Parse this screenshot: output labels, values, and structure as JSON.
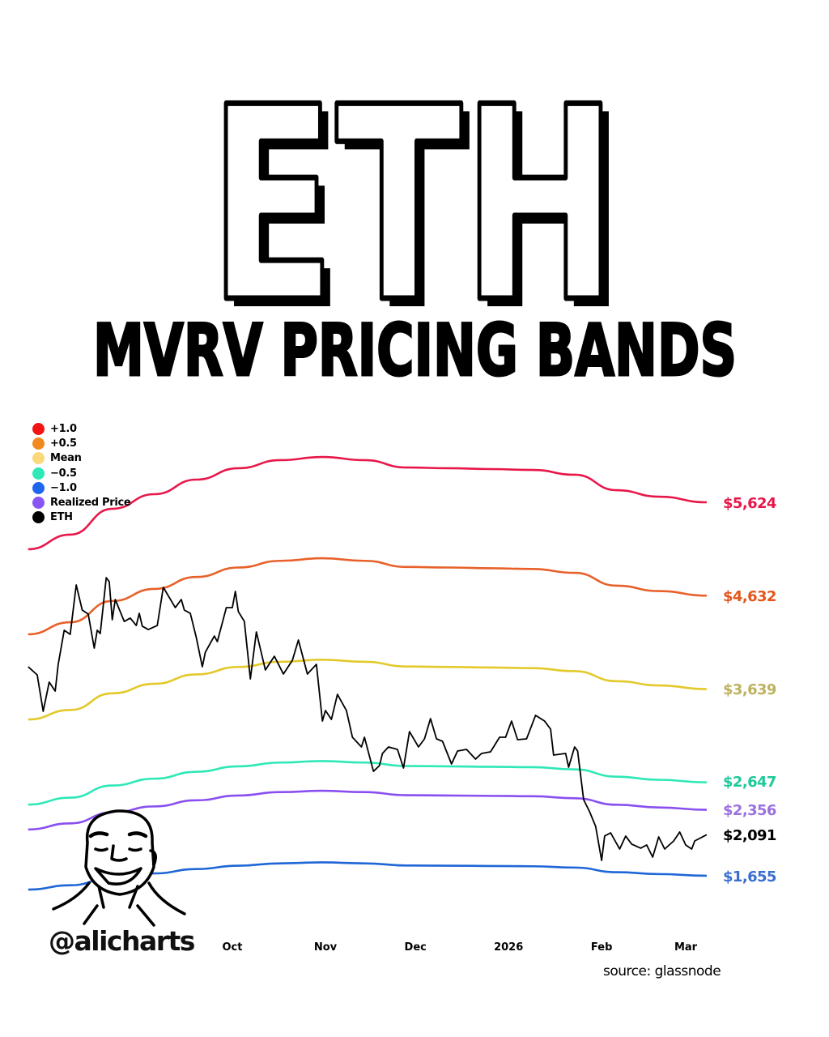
{
  "header": {
    "title": "ETH",
    "subtitle": "MVRV PRICING BANDS"
  },
  "branding": {
    "handle": "@alicharts",
    "source": "source: glassnode"
  },
  "chart_data": {
    "type": "line",
    "title": "",
    "xlabel": "",
    "ylabel": "",
    "x_ticks": [
      {
        "date": "2025-10-01",
        "label": "Oct"
      },
      {
        "date": "2025-11-01",
        "label": "Nov"
      },
      {
        "date": "2025-12-01",
        "label": "Dec"
      },
      {
        "date": "2026-01-01",
        "label": "2026"
      },
      {
        "date": "2026-02-01",
        "label": "Feb"
      },
      {
        "date": "2026-03-01",
        "label": "Mar"
      }
    ],
    "xlim": [
      "2025-07-25",
      "2026-03-08"
    ],
    "grid": false,
    "legend_position": "top-left",
    "band_dates": [
      "2025-07-25",
      "2025-08-08",
      "2025-08-22",
      "2025-09-05",
      "2025-09-19",
      "2025-10-03",
      "2025-10-17",
      "2025-10-31",
      "2025-11-14",
      "2025-11-28",
      "2025-12-12",
      "2025-12-26",
      "2026-01-09",
      "2026-01-23",
      "2026-02-06",
      "2026-02-20",
      "2026-03-08"
    ],
    "series": [
      {
        "name": "+1.0",
        "color": "#e8174a",
        "label_color": "#e8174a",
        "last_label": "$5,624",
        "values": [
          5125,
          5280,
          5555,
          5710,
          5865,
          5986,
          6072,
          6106,
          6072,
          5994,
          5986,
          5977,
          5968,
          5917,
          5753,
          5684,
          5624
        ]
      },
      {
        "name": "+0.5",
        "color": "#e8612a",
        "label_color": "#e3561c",
        "last_label": "$4,632",
        "values": [
          4221,
          4349,
          4575,
          4703,
          4830,
          4931,
          5002,
          5029,
          5002,
          4937,
          4931,
          4923,
          4915,
          4874,
          4738,
          4681,
          4632
        ]
      },
      {
        "name": "Mean",
        "color": "#e3c92a",
        "label_color": "#bdb25e",
        "last_label": "$3,639",
        "values": [
          3316,
          3417,
          3594,
          3695,
          3795,
          3874,
          3929,
          3951,
          3929,
          3879,
          3874,
          3868,
          3862,
          3829,
          3723,
          3678,
          3639
        ]
      },
      {
        "name": "-0.5",
        "color": "#2ee8b6",
        "label_color": "#1ec99a",
        "last_label": "$2,647",
        "values": [
          2412,
          2485,
          2614,
          2687,
          2760,
          2818,
          2858,
          2874,
          2858,
          2821,
          2818,
          2813,
          2809,
          2785,
          2708,
          2675,
          2647
        ]
      },
      {
        "name": "-1.0",
        "color": "#1f66d6",
        "label_color": "#3a6fcf",
        "last_label": "$1,655",
        "values": [
          1508,
          1554,
          1635,
          1680,
          1726,
          1762,
          1787,
          1797,
          1787,
          1764,
          1762,
          1759,
          1756,
          1742,
          1693,
          1673,
          1655
        ]
      },
      {
        "name": "Realized Price",
        "color": "#8a4ff0",
        "label_color": "#9b72dc",
        "last_label": "$2,356",
        "values": [
          2147,
          2212,
          2327,
          2392,
          2457,
          2508,
          2544,
          2558,
          2544,
          2511,
          2508,
          2504,
          2500,
          2479,
          2410,
          2381,
          2356
        ]
      },
      {
        "name": "ETH",
        "color": "#000000",
        "label_color": "#000000",
        "last_label": "$2,091",
        "points": [
          [
            "2025-07-25",
            3876
          ],
          [
            "2025-07-28",
            3790
          ],
          [
            "2025-07-30",
            3403
          ],
          [
            "2025-08-01",
            3713
          ],
          [
            "2025-08-03",
            3618
          ],
          [
            "2025-08-04",
            3902
          ],
          [
            "2025-08-06",
            4264
          ],
          [
            "2025-08-08",
            4221
          ],
          [
            "2025-08-10",
            4746
          ],
          [
            "2025-08-12",
            4479
          ],
          [
            "2025-08-14",
            4436
          ],
          [
            "2025-08-16",
            4074
          ],
          [
            "2025-08-17",
            4264
          ],
          [
            "2025-08-18",
            4229
          ],
          [
            "2025-08-20",
            4823
          ],
          [
            "2025-08-21",
            4780
          ],
          [
            "2025-08-22",
            4376
          ],
          [
            "2025-08-23",
            4591
          ],
          [
            "2025-08-26",
            4358
          ],
          [
            "2025-08-28",
            4393
          ],
          [
            "2025-08-30",
            4315
          ],
          [
            "2025-08-31",
            4444
          ],
          [
            "2025-09-01",
            4307
          ],
          [
            "2025-09-03",
            4272
          ],
          [
            "2025-09-06",
            4315
          ],
          [
            "2025-09-08",
            4720
          ],
          [
            "2025-09-12",
            4505
          ],
          [
            "2025-09-14",
            4591
          ],
          [
            "2025-09-15",
            4479
          ],
          [
            "2025-09-17",
            4444
          ],
          [
            "2025-09-19",
            4186
          ],
          [
            "2025-09-21",
            3876
          ],
          [
            "2025-09-22",
            4031
          ],
          [
            "2025-09-25",
            4203
          ],
          [
            "2025-09-26",
            4143
          ],
          [
            "2025-09-29",
            4505
          ],
          [
            "2025-10-01",
            4505
          ],
          [
            "2025-10-02",
            4677
          ],
          [
            "2025-10-03",
            4462
          ],
          [
            "2025-10-05",
            4358
          ],
          [
            "2025-10-07",
            3747
          ],
          [
            "2025-10-09",
            4246
          ],
          [
            "2025-10-12",
            3842
          ],
          [
            "2025-10-15",
            3988
          ],
          [
            "2025-10-18",
            3799
          ],
          [
            "2025-10-21",
            3945
          ],
          [
            "2025-10-23",
            4160
          ],
          [
            "2025-10-26",
            3799
          ],
          [
            "2025-10-29",
            3902
          ],
          [
            "2025-10-31",
            3299
          ],
          [
            "2025-11-01",
            3411
          ],
          [
            "2025-11-03",
            3317
          ],
          [
            "2025-11-05",
            3583
          ],
          [
            "2025-11-08",
            3411
          ],
          [
            "2025-11-10",
            3127
          ],
          [
            "2025-11-13",
            3024
          ],
          [
            "2025-11-14",
            3127
          ],
          [
            "2025-11-17",
            2765
          ],
          [
            "2025-11-19",
            2826
          ],
          [
            "2025-11-20",
            2955
          ],
          [
            "2025-11-22",
            3024
          ],
          [
            "2025-11-25",
            2998
          ],
          [
            "2025-11-27",
            2800
          ],
          [
            "2025-11-29",
            3187
          ],
          [
            "2025-12-02",
            3024
          ],
          [
            "2025-12-04",
            3110
          ],
          [
            "2025-12-06",
            3325
          ],
          [
            "2025-12-08",
            3110
          ],
          [
            "2025-12-10",
            3084
          ],
          [
            "2025-12-13",
            2843
          ],
          [
            "2025-12-15",
            2981
          ],
          [
            "2025-12-18",
            2998
          ],
          [
            "2025-12-21",
            2895
          ],
          [
            "2025-12-23",
            2955
          ],
          [
            "2025-12-26",
            2972
          ],
          [
            "2025-12-29",
            3127
          ],
          [
            "2025-12-31",
            3127
          ],
          [
            "2026-01-02",
            3299
          ],
          [
            "2026-01-04",
            3101
          ],
          [
            "2026-01-07",
            3110
          ],
          [
            "2026-01-10",
            3360
          ],
          [
            "2026-01-13",
            3299
          ],
          [
            "2026-01-15",
            3213
          ],
          [
            "2026-01-16",
            2938
          ],
          [
            "2026-01-20",
            2955
          ],
          [
            "2026-01-21",
            2809
          ],
          [
            "2026-01-23",
            3024
          ],
          [
            "2026-01-24",
            2981
          ],
          [
            "2026-01-26",
            2464
          ],
          [
            "2026-01-28",
            2335
          ],
          [
            "2026-01-30",
            2180
          ],
          [
            "2026-02-01",
            1818
          ],
          [
            "2026-02-02",
            2077
          ],
          [
            "2026-02-04",
            2111
          ],
          [
            "2026-02-07",
            1939
          ],
          [
            "2026-02-09",
            2077
          ],
          [
            "2026-02-11",
            1991
          ],
          [
            "2026-02-14",
            1948
          ],
          [
            "2026-02-16",
            1982
          ],
          [
            "2026-02-18",
            1853
          ],
          [
            "2026-02-20",
            2068
          ],
          [
            "2026-02-22",
            1939
          ],
          [
            "2026-02-25",
            2025
          ],
          [
            "2026-02-27",
            2120
          ],
          [
            "2026-03-01",
            1982
          ],
          [
            "2026-03-03",
            1939
          ],
          [
            "2026-03-04",
            2025
          ],
          [
            "2026-03-08",
            2091
          ]
        ]
      }
    ],
    "legend_dot_colors": [
      "#f01414",
      "#f08a1e",
      "#fbd97a",
      "#2ee8b6",
      "#1f66ee",
      "#8a55f5",
      "#000000"
    ],
    "legend": [
      "+1.0",
      "+0.5",
      "Mean",
      "−0.5",
      "−1.0",
      "Realized Price",
      "ETH"
    ]
  }
}
